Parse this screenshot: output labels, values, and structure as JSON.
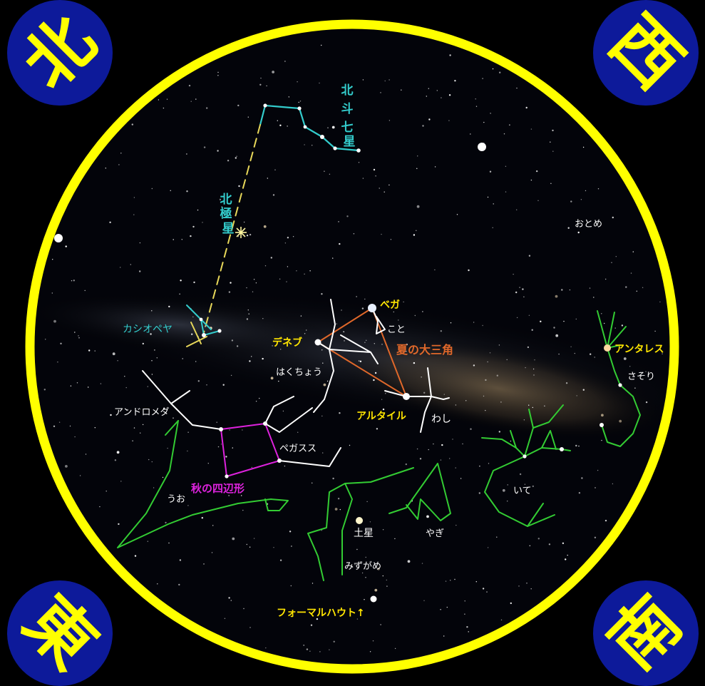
{
  "corners": {
    "north": "北",
    "west": "西",
    "east": "東",
    "south": "南"
  },
  "colors": {
    "background": "#000000",
    "rim": "#ffff00",
    "badge_fill": "#0d1a9a",
    "badge_text": "#ffff00",
    "cyan": "#33cccc",
    "white": "#ffffff",
    "green": "#33cc33",
    "magenta": "#dd22dd",
    "orange": "#e0682a",
    "yellow_label": "#ffe500",
    "milky_way": "#5a4a35"
  },
  "labels": {
    "big_dipper": "北斗七星",
    "polaris": "北極星",
    "cassiopeia": "カシオペヤ",
    "vega": "ベガ",
    "lyra": "こと",
    "deneb": "デネブ",
    "summer_triangle": "夏の大三角",
    "cygnus": "はくちょう",
    "altair": "アルタイル",
    "aquila": "わし",
    "andromeda": "アンドロメダ",
    "pegasus": "ペガスス",
    "autumn_square": "秋の四辺形",
    "pisces": "うお",
    "saturn": "土星",
    "capricornus": "やぎ",
    "aquarius": "みずがめ",
    "fomalhaut": "フォーマルハウト↑",
    "sagittarius": "いて",
    "antares": "アンタレス",
    "scorpius": "さそり",
    "virgo": "おとめ"
  }
}
